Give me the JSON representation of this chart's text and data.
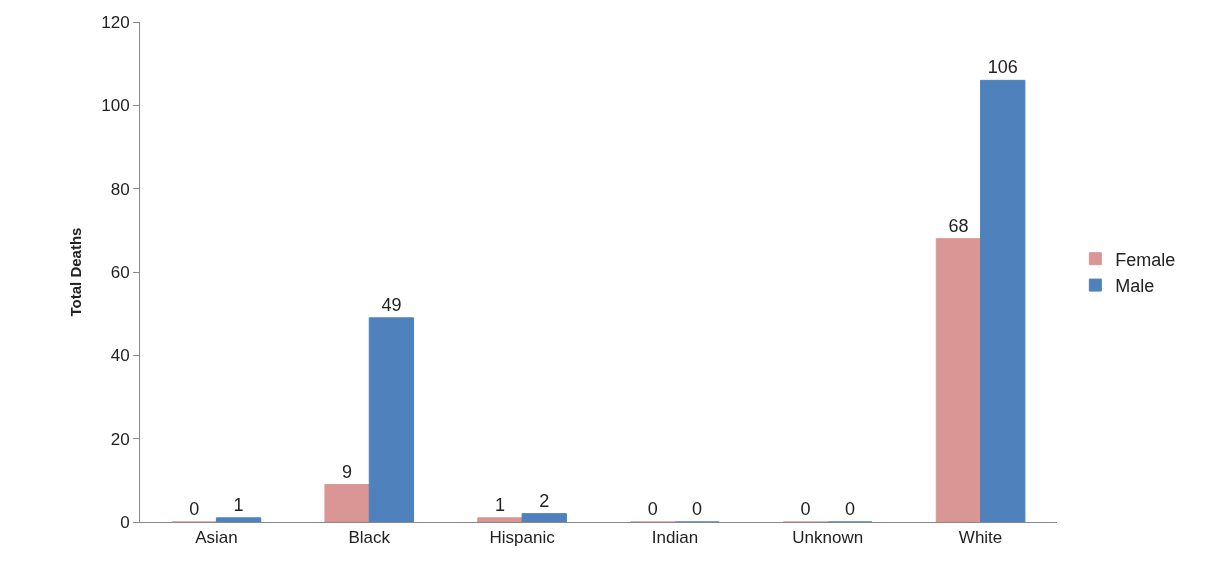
{
  "chart_data": {
    "type": "bar",
    "ylabel": "Total Deaths",
    "categories": [
      "Asian",
      "Black",
      "Hispanic",
      "Indian",
      "Unknown",
      "White"
    ],
    "series": [
      {
        "name": "Female",
        "color": "#d99694",
        "values": [
          0,
          9,
          1,
          0,
          0,
          68
        ]
      },
      {
        "name": "Male",
        "color": "#4f81bd",
        "values": [
          1,
          49,
          2,
          0,
          0,
          106
        ]
      }
    ],
    "ylim": [
      0,
      120
    ],
    "yticks": [
      0,
      20,
      40,
      60,
      80,
      100,
      120
    ],
    "legend": "right",
    "data_labels": true
  }
}
